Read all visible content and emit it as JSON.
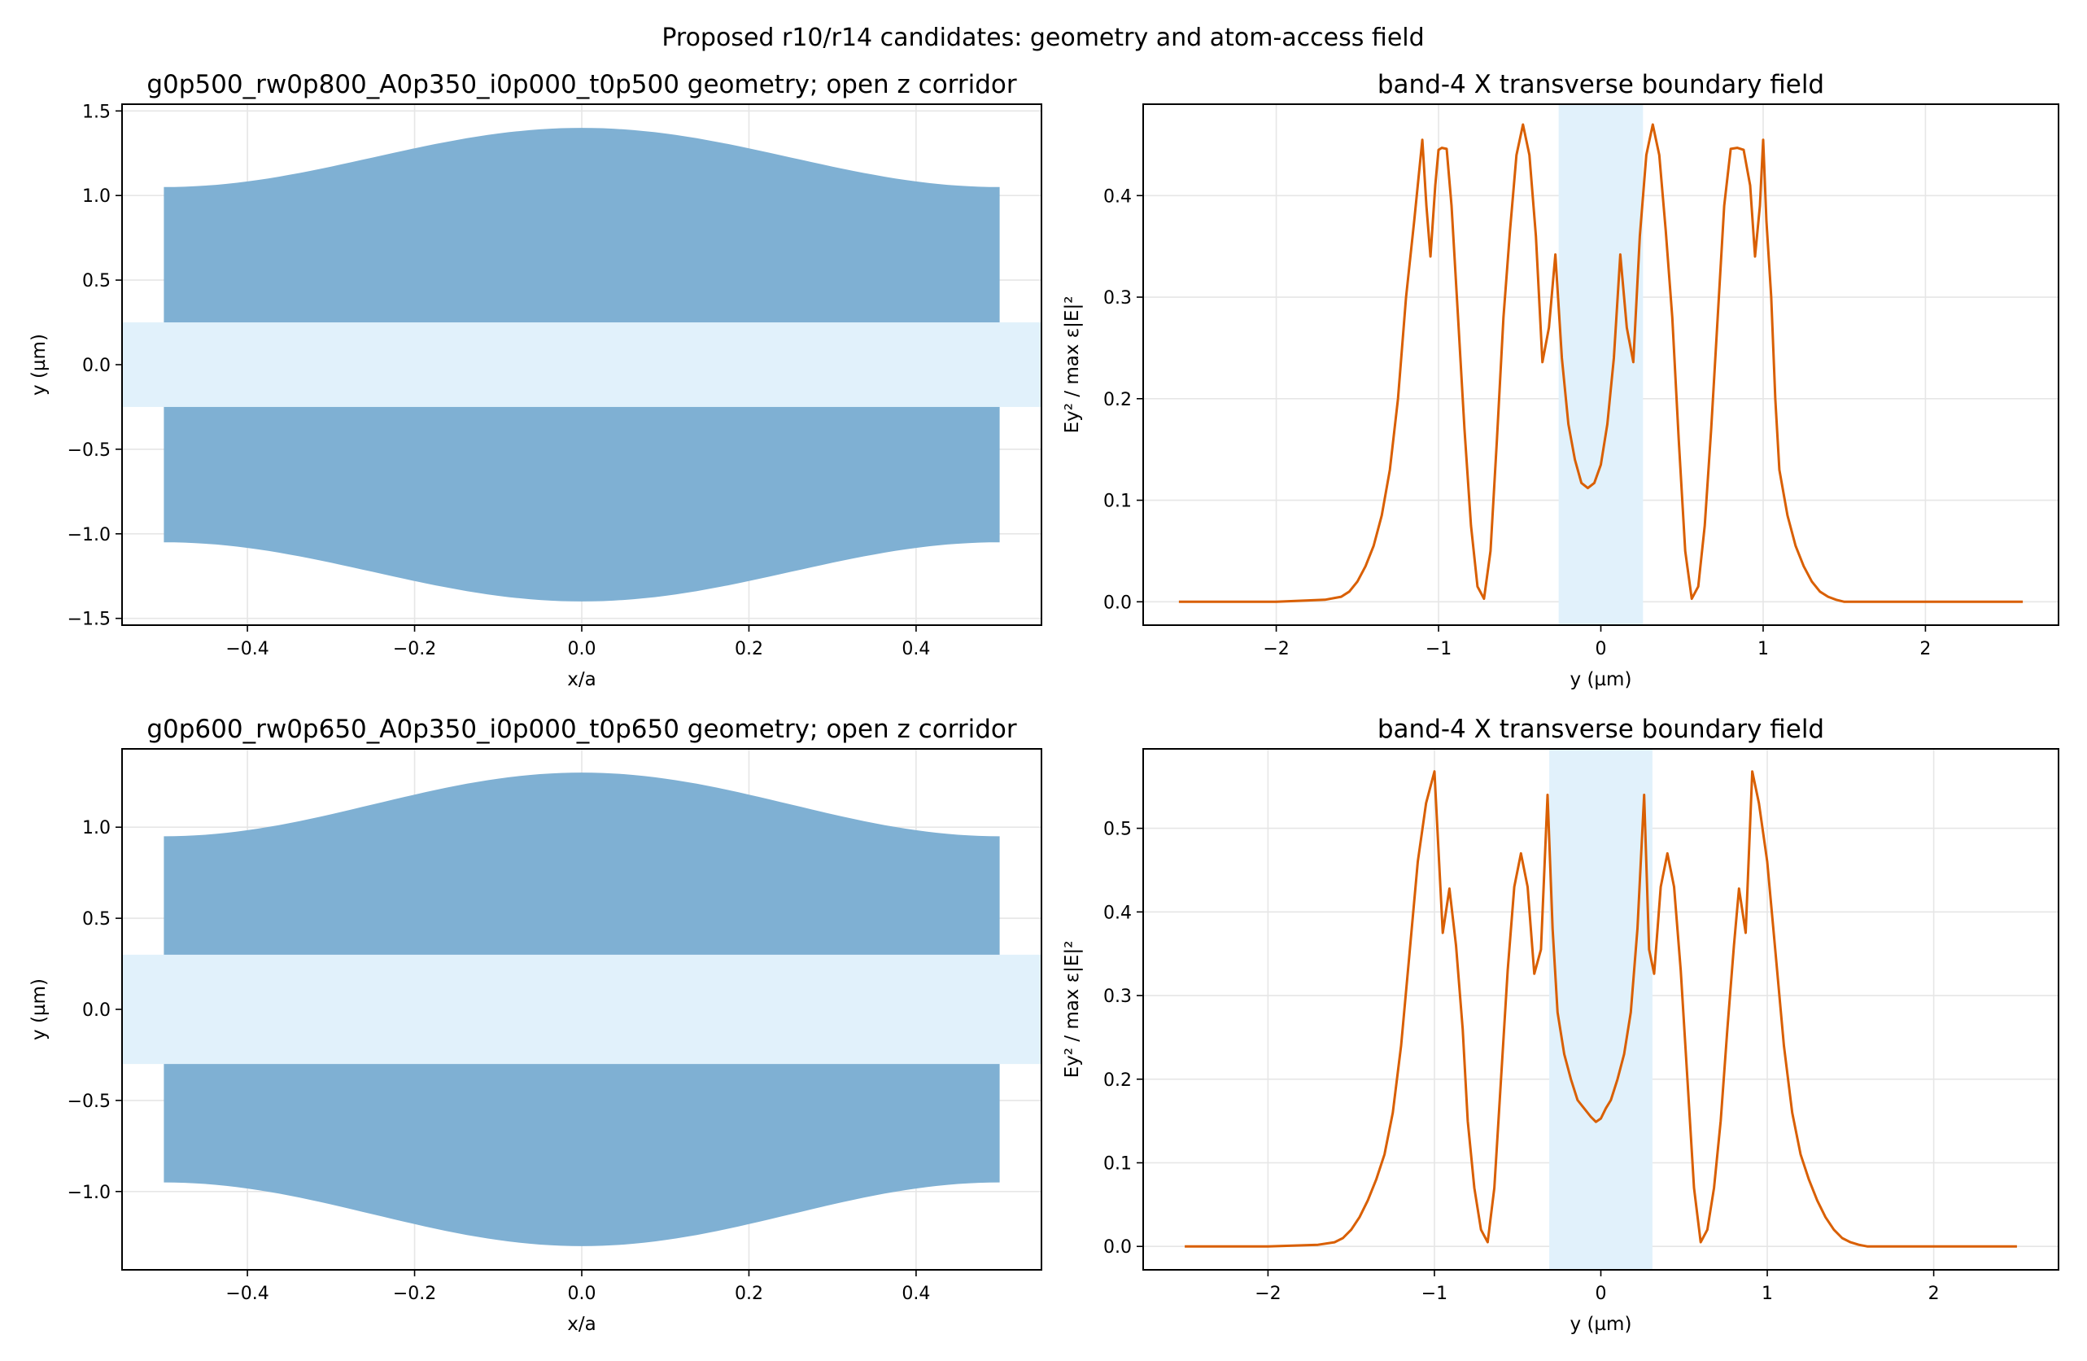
{
  "figure": {
    "suptitle": "Proposed r10/r14 candidates: geometry and atom-access field",
    "colors": {
      "slab": "#7fb0d3",
      "corridor": "#e1f1fb",
      "field_line": "#d95f02",
      "grid": "#e6e6e6"
    }
  },
  "chart_data": [
    {
      "type": "area",
      "title": "g0p500_rw0p800_A0p350_i0p000_t0p500 geometry; open z corridor",
      "xlabel": "x/a",
      "ylabel": "y (µm)",
      "xlim": [
        -0.55,
        0.55
      ],
      "ylim": [
        -1.54,
        1.54
      ],
      "xticks": [
        -0.4,
        -0.2,
        0.0,
        0.2,
        0.4
      ],
      "xtick_labels": [
        "−0.4",
        "−0.2",
        "0.0",
        "0.2",
        "0.4"
      ],
      "yticks": [
        -1.5,
        -1.0,
        -0.5,
        0.0,
        0.5,
        1.0,
        1.5
      ],
      "ytick_labels": [
        "−1.5",
        "−1.0",
        "−0.5",
        "0.0",
        "0.5",
        "1.0",
        "1.5"
      ],
      "grid": true,
      "slab_x_range": [
        -0.5,
        0.5
      ],
      "outer_edge_center": 1.4,
      "outer_edge_ends": 1.05,
      "corridor_half_width": 0.25
    },
    {
      "type": "line",
      "title": "band-4 X transverse boundary field",
      "xlabel": "y (µm)",
      "ylabel": "Ey² / max ε|E|²",
      "xlim": [
        -2.82,
        2.82
      ],
      "ylim": [
        -0.023,
        0.49
      ],
      "xticks": [
        -2,
        -1,
        0,
        1,
        2
      ],
      "xtick_labels": [
        "−2",
        "−1",
        "0",
        "1",
        "2"
      ],
      "yticks": [
        0.0,
        0.1,
        0.2,
        0.3,
        0.4
      ],
      "ytick_labels": [
        "0.0",
        "0.1",
        "0.2",
        "0.3",
        "0.4"
      ],
      "grid": true,
      "shaded_region": [
        -0.26,
        0.26
      ],
      "series": [
        {
          "x": [
            -2.6,
            -2.0,
            -1.7,
            -1.6,
            -1.55,
            -1.5,
            -1.45,
            -1.4,
            -1.35,
            -1.3,
            -1.25,
            -1.2,
            -1.15,
            -1.1,
            -1.075,
            -1.05,
            -1.02,
            -1.0,
            -0.98,
            -0.95,
            -0.92,
            -0.88,
            -0.84,
            -0.8,
            -0.76,
            -0.72,
            -0.68,
            -0.64,
            -0.6,
            -0.56,
            -0.52,
            -0.48,
            -0.44,
            -0.4,
            -0.36,
            -0.32,
            -0.28,
            -0.24,
            -0.2,
            -0.16,
            -0.12,
            -0.08,
            -0.04,
            0.0,
            0.04,
            0.08,
            0.12,
            0.16,
            0.2,
            0.24,
            0.28,
            0.32,
            0.36,
            0.4,
            0.44,
            0.48,
            0.52,
            0.56,
            0.6,
            0.64,
            0.68,
            0.72,
            0.76,
            0.8,
            0.84,
            0.88,
            0.92,
            0.95,
            0.98,
            1.0,
            1.02,
            1.05,
            1.075,
            1.1,
            1.15,
            1.2,
            1.25,
            1.3,
            1.35,
            1.4,
            1.45,
            1.5,
            1.55,
            1.6,
            1.7,
            2.0,
            2.6
          ],
          "values": [
            0.0,
            0.0,
            0.002,
            0.005,
            0.01,
            0.02,
            0.035,
            0.055,
            0.085,
            0.13,
            0.2,
            0.3,
            0.375,
            0.455,
            0.39,
            0.34,
            0.41,
            0.445,
            0.447,
            0.446,
            0.39,
            0.28,
            0.17,
            0.075,
            0.015,
            0.003,
            0.05,
            0.16,
            0.28,
            0.365,
            0.44,
            0.47,
            0.44,
            0.36,
            0.236,
            0.27,
            0.342,
            0.24,
            0.175,
            0.14,
            0.117,
            0.112,
            0.117,
            0.135,
            0.175,
            0.24,
            0.342,
            0.27,
            0.236,
            0.36,
            0.44,
            0.47,
            0.44,
            0.365,
            0.28,
            0.16,
            0.05,
            0.003,
            0.015,
            0.075,
            0.17,
            0.28,
            0.39,
            0.446,
            0.447,
            0.445,
            0.41,
            0.34,
            0.39,
            0.455,
            0.375,
            0.3,
            0.2,
            0.13,
            0.085,
            0.055,
            0.035,
            0.02,
            0.01,
            0.005,
            0.002,
            0.0,
            0.0,
            0.0,
            0.0,
            0.0,
            0.0
          ]
        }
      ]
    },
    {
      "type": "area",
      "title": "g0p600_rw0p650_A0p350_i0p000_t0p650 geometry; open z corridor",
      "xlabel": "x/a",
      "ylabel": "y (µm)",
      "xlim": [
        -0.55,
        0.55
      ],
      "ylim": [
        -1.43,
        1.43
      ],
      "xticks": [
        -0.4,
        -0.2,
        0.0,
        0.2,
        0.4
      ],
      "xtick_labels": [
        "−0.4",
        "−0.2",
        "0.0",
        "0.2",
        "0.4"
      ],
      "yticks": [
        -1.0,
        -0.5,
        0.0,
        0.5,
        1.0
      ],
      "ytick_labels": [
        "−1.0",
        "−0.5",
        "0.0",
        "0.5",
        "1.0"
      ],
      "grid": true,
      "slab_x_range": [
        -0.5,
        0.5
      ],
      "outer_edge_center": 1.3,
      "outer_edge_ends": 0.95,
      "corridor_half_width": 0.3
    },
    {
      "type": "line",
      "title": "band-4 X transverse boundary field",
      "xlabel": "y (µm)",
      "ylabel": "Ey² / max ε|E|²",
      "xlim": [
        -2.75,
        2.75
      ],
      "ylim": [
        -0.028,
        0.595
      ],
      "xticks": [
        -2,
        -1,
        0,
        1,
        2
      ],
      "xtick_labels": [
        "−2",
        "−1",
        "0",
        "1",
        "2"
      ],
      "yticks": [
        0.0,
        0.1,
        0.2,
        0.3,
        0.4,
        0.5
      ],
      "ytick_labels": [
        "0.0",
        "0.1",
        "0.2",
        "0.3",
        "0.4",
        "0.5"
      ],
      "grid": true,
      "shaded_region": [
        -0.31,
        0.31
      ],
      "series": [
        {
          "x": [
            -2.5,
            -2.0,
            -1.7,
            -1.6,
            -1.55,
            -1.5,
            -1.45,
            -1.4,
            -1.35,
            -1.3,
            -1.25,
            -1.2,
            -1.15,
            -1.1,
            -1.05,
            -1.0,
            -0.95,
            -0.91,
            -0.87,
            -0.83,
            -0.8,
            -0.76,
            -0.72,
            -0.68,
            -0.64,
            -0.6,
            -0.56,
            -0.52,
            -0.48,
            -0.44,
            -0.4,
            -0.36,
            -0.32,
            -0.29,
            -0.26,
            -0.22,
            -0.18,
            -0.14,
            -0.1,
            -0.06,
            -0.03,
            0.0,
            0.03,
            0.06,
            0.1,
            0.14,
            0.18,
            0.22,
            0.26,
            0.29,
            0.32,
            0.36,
            0.4,
            0.44,
            0.48,
            0.52,
            0.56,
            0.6,
            0.64,
            0.68,
            0.72,
            0.76,
            0.8,
            0.83,
            0.87,
            0.91,
            0.95,
            1.0,
            1.05,
            1.1,
            1.15,
            1.2,
            1.25,
            1.3,
            1.35,
            1.4,
            1.45,
            1.5,
            1.55,
            1.6,
            1.7,
            2.0,
            2.5
          ],
          "values": [
            0.0,
            0.0,
            0.002,
            0.005,
            0.01,
            0.02,
            0.035,
            0.055,
            0.08,
            0.11,
            0.16,
            0.24,
            0.35,
            0.46,
            0.53,
            0.568,
            0.375,
            0.428,
            0.36,
            0.26,
            0.15,
            0.07,
            0.02,
            0.005,
            0.07,
            0.2,
            0.33,
            0.43,
            0.47,
            0.43,
            0.326,
            0.355,
            0.54,
            0.38,
            0.28,
            0.23,
            0.2,
            0.175,
            0.165,
            0.155,
            0.149,
            0.153,
            0.165,
            0.175,
            0.2,
            0.23,
            0.28,
            0.38,
            0.54,
            0.355,
            0.326,
            0.43,
            0.47,
            0.43,
            0.33,
            0.2,
            0.07,
            0.005,
            0.02,
            0.07,
            0.15,
            0.26,
            0.36,
            0.428,
            0.375,
            0.568,
            0.53,
            0.46,
            0.35,
            0.24,
            0.16,
            0.11,
            0.08,
            0.055,
            0.035,
            0.02,
            0.01,
            0.005,
            0.002,
            0.0,
            0.0,
            0.0,
            0.0
          ]
        }
      ]
    }
  ]
}
